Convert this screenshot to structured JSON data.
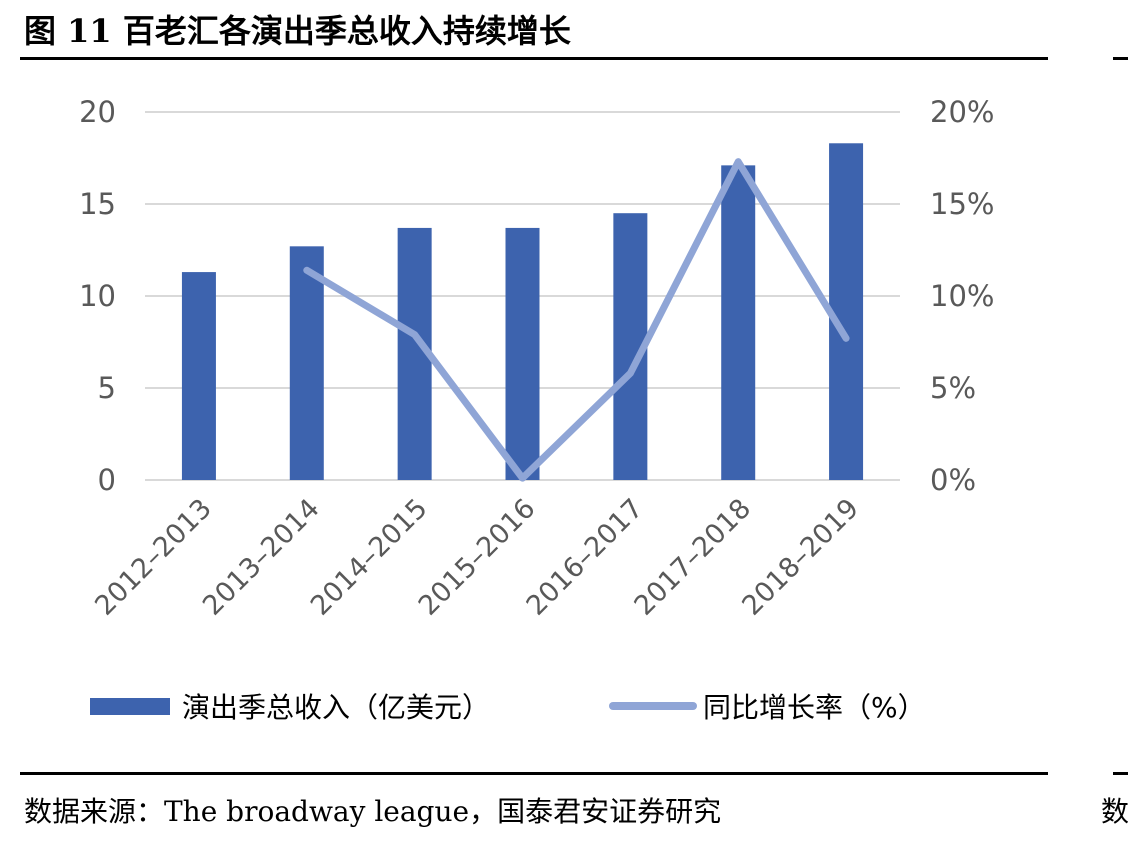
{
  "figure": {
    "title": "图 11  百老汇各演出季总收入持续增长",
    "source": "数据来源：The broadway league，国泰君安证券研究",
    "source_partial": "数"
  },
  "chart_data": {
    "type": "bar",
    "categories": [
      "2012–2013",
      "2013–2014",
      "2014–2015",
      "2015–2016",
      "2016–2017",
      "2017–2018",
      "2018–2019"
    ],
    "series": [
      {
        "name": "演出季总收入（亿美元）",
        "type": "bar",
        "axis": "left",
        "values": [
          11.3,
          12.7,
          13.7,
          13.7,
          14.5,
          17.1,
          18.3
        ]
      },
      {
        "name": "同比增长率（%）",
        "type": "line",
        "axis": "right",
        "values": [
          null,
          11.4,
          7.9,
          0.1,
          5.8,
          17.3,
          7.7
        ]
      }
    ],
    "y_left": {
      "min": 0,
      "max": 20,
      "ticks": [
        0,
        5,
        10,
        15,
        20
      ],
      "tick_labels": [
        "0",
        "5",
        "10",
        "15",
        "20"
      ]
    },
    "y_right": {
      "min": 0,
      "max": 20,
      "ticks": [
        0,
        5,
        10,
        15,
        20
      ],
      "tick_labels": [
        "0%",
        "5%",
        "10%",
        "15%",
        "20%"
      ]
    },
    "grid": true,
    "legend_position": "bottom",
    "colors": {
      "bar": "#3d63ae",
      "line": "#8fa5d6",
      "grid": "#d9d9d9",
      "tick_text": "#595959"
    }
  }
}
